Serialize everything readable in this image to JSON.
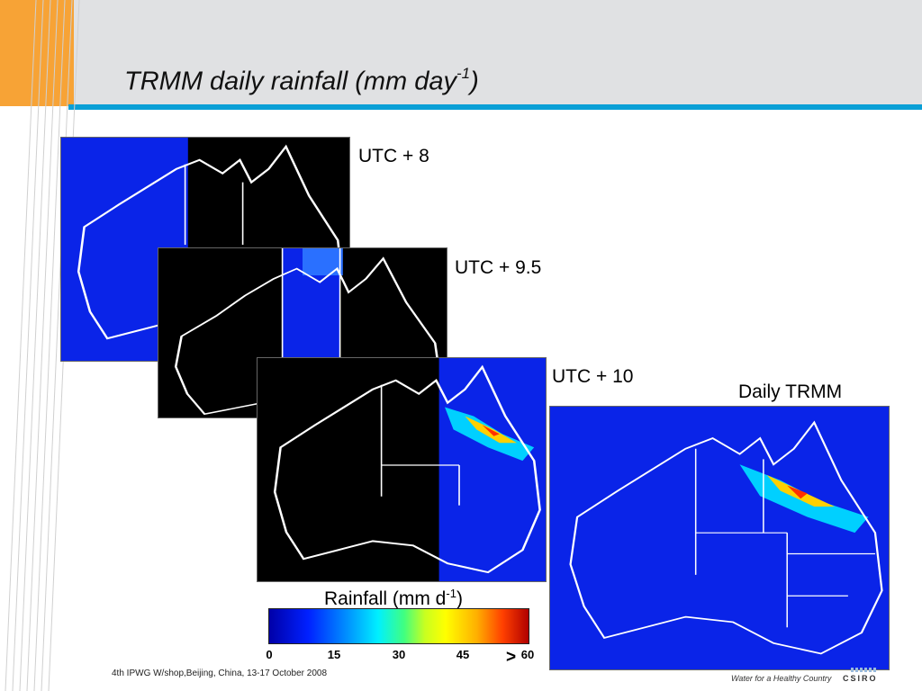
{
  "slide": {
    "title_main": "TRMM daily rainfall (mm day",
    "title_sup": "-1",
    "title_end": ")",
    "footer": "4th IPWG W/shop,Beijing, China, 13-17 October 2008",
    "logo_tagline": "Water for a Healthy Country",
    "logo_name": "CSIRO"
  },
  "maps": {
    "utc8": "UTC + 8",
    "utc95": "UTC + 9.5",
    "utc10": "UTC + 10",
    "daily": "Daily TRMM"
  },
  "colorbar": {
    "title_main": "Rainfall (mm d",
    "title_sup": "-1",
    "title_end": ")",
    "ticks": [
      "0",
      "15",
      "30",
      "45",
      "60"
    ],
    "gt_symbol": ">",
    "scale_colors": [
      "#0000a8",
      "#0090ff",
      "#00f0ff",
      "#ffff00",
      "#ff4000",
      "#b00000"
    ]
  },
  "colors": {
    "header_bg": "#e0e1e3",
    "accent_orange": "#f7a336",
    "accent_blue": "#0a9fd6",
    "map_blue": "#0a24e8",
    "map_black": "#000000"
  }
}
